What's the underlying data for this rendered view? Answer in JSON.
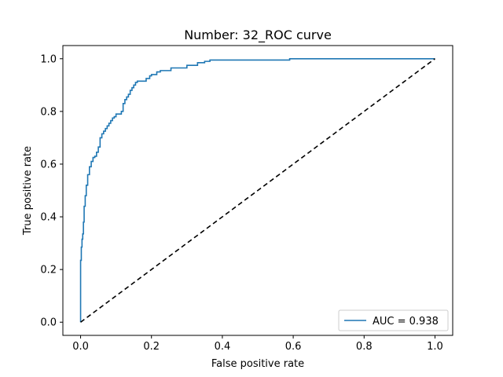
{
  "chart_data": {
    "type": "line",
    "title": "Number: 32_ROC curve",
    "xlabel": "False positive rate",
    "ylabel": "True positive rate",
    "xlim": [
      -0.05,
      1.05
    ],
    "ylim": [
      -0.05,
      1.05
    ],
    "xticks": [
      0.0,
      0.2,
      0.4,
      0.6,
      0.8,
      1.0
    ],
    "xtick_labels": [
      "0.0",
      "0.2",
      "0.4",
      "0.6",
      "0.8",
      "1.0"
    ],
    "yticks": [
      0.0,
      0.2,
      0.4,
      0.6,
      0.8,
      1.0
    ],
    "ytick_labels": [
      "0.0",
      "0.2",
      "0.4",
      "0.6",
      "0.8",
      "1.0"
    ],
    "grid": false,
    "legend": {
      "placement": "lower-right",
      "entries": [
        "AUC = 0.938"
      ]
    },
    "series": [
      {
        "name": "AUC = 0.938",
        "style": "solid",
        "color": "#1f77b4",
        "x": [
          0.0,
          0.0,
          0.002,
          0.002,
          0.004,
          0.004,
          0.006,
          0.006,
          0.008,
          0.008,
          0.01,
          0.01,
          0.013,
          0.013,
          0.016,
          0.016,
          0.02,
          0.02,
          0.025,
          0.025,
          0.03,
          0.03,
          0.035,
          0.035,
          0.04,
          0.04,
          0.045,
          0.045,
          0.05,
          0.05,
          0.055,
          0.055,
          0.06,
          0.06,
          0.065,
          0.065,
          0.07,
          0.07,
          0.075,
          0.075,
          0.08,
          0.08,
          0.085,
          0.085,
          0.09,
          0.09,
          0.095,
          0.095,
          0.1,
          0.1,
          0.115,
          0.115,
          0.12,
          0.12,
          0.125,
          0.125,
          0.13,
          0.13,
          0.135,
          0.135,
          0.14,
          0.14,
          0.145,
          0.145,
          0.15,
          0.15,
          0.155,
          0.155,
          0.16,
          0.16,
          0.185,
          0.185,
          0.195,
          0.195,
          0.2,
          0.2,
          0.215,
          0.215,
          0.225,
          0.225,
          0.255,
          0.255,
          0.3,
          0.3,
          0.33,
          0.33,
          0.35,
          0.35,
          0.365,
          0.365,
          0.59,
          0.59,
          1.0
        ],
        "y": [
          0.0,
          0.235,
          0.235,
          0.285,
          0.285,
          0.315,
          0.315,
          0.335,
          0.335,
          0.38,
          0.38,
          0.44,
          0.44,
          0.48,
          0.48,
          0.52,
          0.52,
          0.56,
          0.56,
          0.59,
          0.59,
          0.61,
          0.61,
          0.625,
          0.625,
          0.63,
          0.63,
          0.645,
          0.645,
          0.665,
          0.665,
          0.7,
          0.7,
          0.715,
          0.715,
          0.725,
          0.725,
          0.735,
          0.735,
          0.745,
          0.745,
          0.755,
          0.755,
          0.765,
          0.765,
          0.775,
          0.775,
          0.78,
          0.78,
          0.79,
          0.79,
          0.8,
          0.8,
          0.83,
          0.83,
          0.845,
          0.845,
          0.855,
          0.855,
          0.865,
          0.865,
          0.88,
          0.88,
          0.89,
          0.89,
          0.9,
          0.9,
          0.91,
          0.91,
          0.915,
          0.915,
          0.925,
          0.925,
          0.935,
          0.935,
          0.94,
          0.94,
          0.95,
          0.95,
          0.955,
          0.955,
          0.965,
          0.965,
          0.975,
          0.975,
          0.985,
          0.985,
          0.99,
          0.99,
          0.995,
          0.995,
          1.0,
          1.0
        ]
      },
      {
        "style": "dashed",
        "color": "#000000",
        "x": [
          0.0,
          1.0
        ],
        "y": [
          0.0,
          1.0
        ]
      }
    ]
  }
}
